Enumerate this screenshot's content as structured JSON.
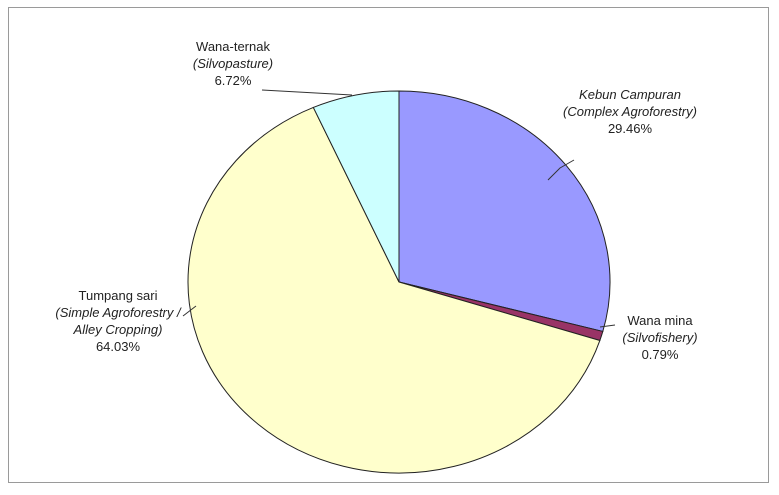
{
  "chart_data": {
    "type": "pie",
    "slices": [
      {
        "name": "Kebun Campuran",
        "name_en": "Complex Agroforestry",
        "percent": 29.46,
        "label": "29.46%",
        "color": "#9999ff"
      },
      {
        "name": "Wana mina",
        "name_en": "Silvofishery",
        "percent": 0.79,
        "label": "0.79%",
        "color": "#993366"
      },
      {
        "name": "Tumpang sari",
        "name_en": "Simple Agroforestry / Alley Cropping",
        "percent": 64.03,
        "label": "64.03%",
        "color": "#ffffcc"
      },
      {
        "name": "Wana-ternak",
        "name_en": "Silvopasture",
        "percent": 6.72,
        "label": "6.72%",
        "color": "#ccffff"
      }
    ],
    "title": "",
    "legend": "none"
  }
}
